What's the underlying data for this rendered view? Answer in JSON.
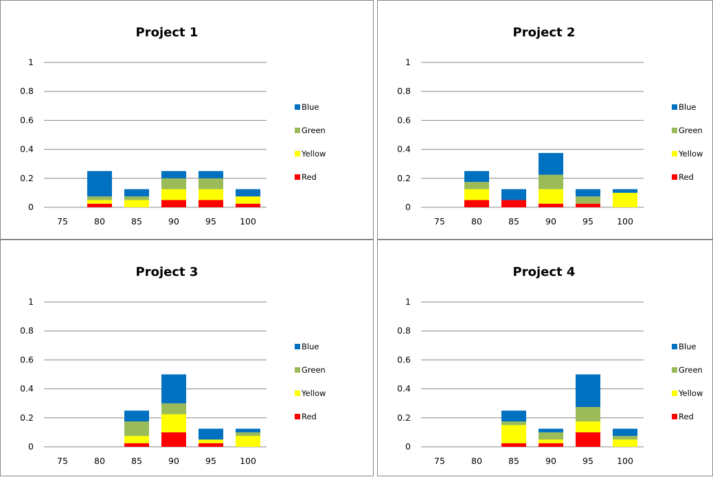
{
  "colors": {
    "Blue": "#0070c0",
    "Green": "#9bbb59",
    "Yellow": "#ffff00",
    "Red": "#ff0000",
    "grid": "#868686"
  },
  "chart_data": [
    {
      "type": "bar",
      "stacked": true,
      "title": "Project 1",
      "categories": [
        "75",
        "80",
        "85",
        "90",
        "95",
        "100"
      ],
      "ylim": [
        0,
        1
      ],
      "yticks": [
        "0",
        "0.2",
        "0.4",
        "0.6",
        "0.8",
        "1"
      ],
      "grid": true,
      "legend": "right",
      "series": [
        {
          "name": "Red",
          "values": [
            0,
            0.025,
            0,
            0.05,
            0.05,
            0.025
          ]
        },
        {
          "name": "Yellow",
          "values": [
            0,
            0.025,
            0.05,
            0.075,
            0.075,
            0.05
          ]
        },
        {
          "name": "Green",
          "values": [
            0,
            0.025,
            0.025,
            0.075,
            0.075,
            0
          ]
        },
        {
          "name": "Blue",
          "values": [
            0,
            0.175,
            0.05,
            0.05,
            0.05,
            0.05
          ]
        }
      ]
    },
    {
      "type": "bar",
      "stacked": true,
      "title": "Project 2",
      "categories": [
        "75",
        "80",
        "85",
        "90",
        "95",
        "100"
      ],
      "ylim": [
        0,
        1
      ],
      "yticks": [
        "0",
        "0.2",
        "0.4",
        "0.6",
        "0.8",
        "1"
      ],
      "grid": true,
      "legend": "right",
      "series": [
        {
          "name": "Red",
          "values": [
            0,
            0.05,
            0.05,
            0.025,
            0.025,
            0
          ]
        },
        {
          "name": "Yellow",
          "values": [
            0,
            0.075,
            0,
            0.1,
            0,
            0.1
          ]
        },
        {
          "name": "Green",
          "values": [
            0,
            0.05,
            0,
            0.1,
            0.05,
            0
          ]
        },
        {
          "name": "Blue",
          "values": [
            0,
            0.075,
            0.075,
            0.15,
            0.05,
            0.025
          ]
        }
      ]
    },
    {
      "type": "bar",
      "stacked": true,
      "title": "Project 3",
      "categories": [
        "75",
        "80",
        "85",
        "90",
        "95",
        "100"
      ],
      "ylim": [
        0,
        1
      ],
      "yticks": [
        "0",
        "0.2",
        "0.4",
        "0.6",
        "0.8",
        "1"
      ],
      "grid": true,
      "legend": "right",
      "series": [
        {
          "name": "Red",
          "values": [
            0,
            0,
            0.025,
            0.1,
            0.025,
            0
          ]
        },
        {
          "name": "Yellow",
          "values": [
            0,
            0,
            0.05,
            0.125,
            0.025,
            0.075
          ]
        },
        {
          "name": "Green",
          "values": [
            0,
            0,
            0.1,
            0.075,
            0,
            0.025
          ]
        },
        {
          "name": "Blue",
          "values": [
            0,
            0,
            0.075,
            0.2,
            0.075,
            0.025
          ]
        }
      ]
    },
    {
      "type": "bar",
      "stacked": true,
      "title": "Project 4",
      "categories": [
        "75",
        "80",
        "85",
        "90",
        "95",
        "100"
      ],
      "ylim": [
        0,
        1
      ],
      "yticks": [
        "0",
        "0.2",
        "0.4",
        "0.6",
        "0.8",
        "1"
      ],
      "grid": true,
      "legend": "right",
      "series": [
        {
          "name": "Red",
          "values": [
            0,
            0,
            0.025,
            0.025,
            0.1,
            0
          ]
        },
        {
          "name": "Yellow",
          "values": [
            0,
            0,
            0.125,
            0.025,
            0.075,
            0.05
          ]
        },
        {
          "name": "Green",
          "values": [
            0,
            0,
            0.025,
            0.05,
            0.1,
            0.025
          ]
        },
        {
          "name": "Blue",
          "values": [
            0,
            0,
            0.075,
            0.025,
            0.225,
            0.05
          ]
        }
      ]
    }
  ],
  "legend_order": [
    "Blue",
    "Green",
    "Yellow",
    "Red"
  ]
}
